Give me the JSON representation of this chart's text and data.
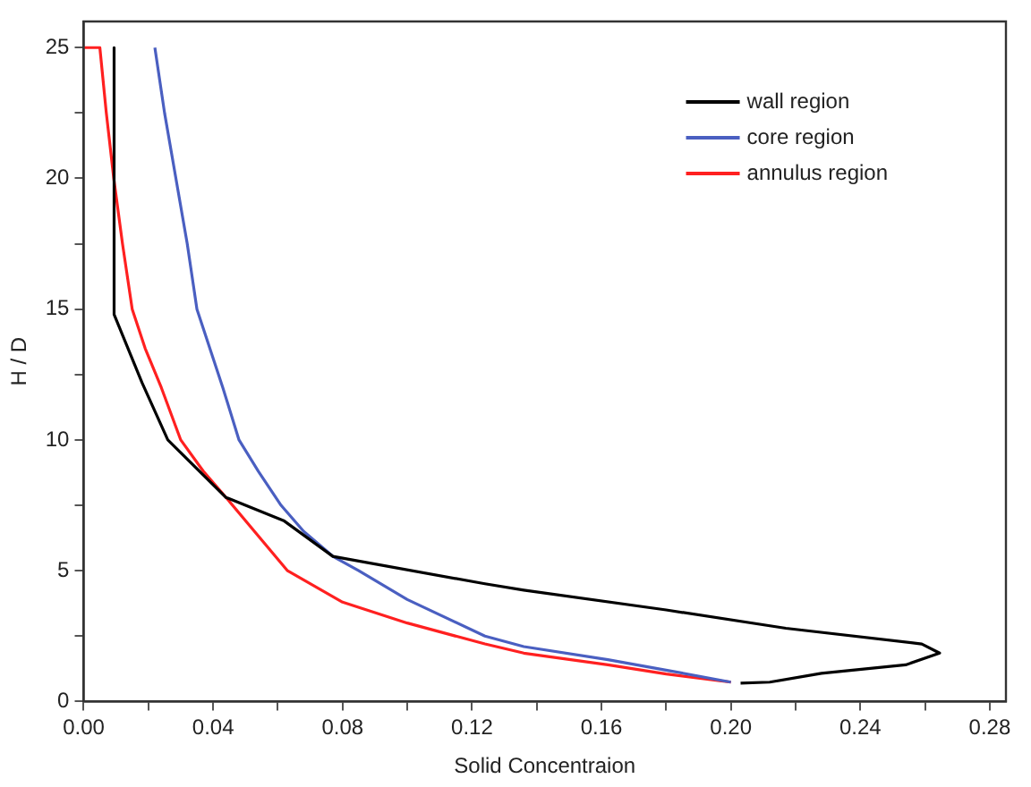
{
  "chart_data": {
    "type": "line",
    "xlabel": "Solid Concentraion",
    "ylabel": "H / D",
    "xlim": [
      0,
      0.285
    ],
    "ylim": [
      0,
      26
    ],
    "xticks": [
      {
        "value": 0,
        "label": "0.00"
      },
      {
        "value": 0.02,
        "label": null
      },
      {
        "value": 0.04,
        "label": "0.04"
      },
      {
        "value": 0.06,
        "label": null
      },
      {
        "value": 0.08,
        "label": "0.08"
      },
      {
        "value": 0.1,
        "label": null
      },
      {
        "value": 0.12,
        "label": "0.12"
      },
      {
        "value": 0.14,
        "label": null
      },
      {
        "value": 0.16,
        "label": "0.16"
      },
      {
        "value": 0.18,
        "label": null
      },
      {
        "value": 0.2,
        "label": "0.20"
      },
      {
        "value": 0.22,
        "label": null
      },
      {
        "value": 0.24,
        "label": "0.24"
      },
      {
        "value": 0.26,
        "label": null
      },
      {
        "value": 0.28,
        "label": "0.28"
      }
    ],
    "yticks": [
      0,
      {
        "value": 2.5,
        "label": null
      },
      5,
      {
        "value": 7.5,
        "label": null
      },
      10,
      {
        "value": 12.5,
        "label": null
      },
      15,
      {
        "value": 17.5,
        "label": null
      },
      20,
      {
        "value": 22.5,
        "label": null
      },
      25
    ],
    "grid": false,
    "legend": "top right",
    "marker": "none",
    "series": [
      {
        "name": "wall region",
        "color": "#000000",
        "x": [
          0.0094,
          0.0094,
          0.018,
          0.026,
          0.044,
          0.062,
          0.077,
          0.124,
          0.136,
          0.18,
          0.217,
          0.259,
          0.2645,
          0.254,
          0.228,
          0.212,
          0.203
        ],
        "values": [
          25,
          14.8,
          12.2,
          10,
          7.8,
          6.9,
          5.55,
          4.5,
          4.26,
          3.5,
          2.8,
          2.2,
          1.85,
          1.4,
          1.08,
          0.74,
          0.7
        ]
      },
      {
        "name": "core region",
        "color": "#4a5fc1",
        "x": [
          0.022,
          0.025,
          0.0285,
          0.032,
          0.035,
          0.043,
          0.048,
          0.054,
          0.061,
          0.068,
          0.077,
          0.085,
          0.1,
          0.124,
          0.136,
          0.162,
          0.18,
          0.2
        ],
        "values": [
          25,
          22.5,
          20,
          17.5,
          15,
          12,
          10,
          8.8,
          7.5,
          6.5,
          5.55,
          5,
          3.9,
          2.5,
          2.1,
          1.6,
          1.2,
          0.74
        ]
      },
      {
        "name": "annulus region",
        "color": "#ff2020",
        "x": [
          0,
          0.005,
          0.007,
          0.0093,
          0.012,
          0.015,
          0.019,
          0.024,
          0.03,
          0.037,
          0.044,
          0.063,
          0.08,
          0.1,
          0.124,
          0.136,
          0.162,
          0.18,
          0.2
        ],
        "values": [
          25,
          25,
          22.5,
          20,
          17.5,
          15,
          13.5,
          12,
          10,
          8.8,
          7.8,
          5,
          3.8,
          3,
          2.2,
          1.85,
          1.4,
          1.05,
          0.74
        ]
      }
    ]
  }
}
